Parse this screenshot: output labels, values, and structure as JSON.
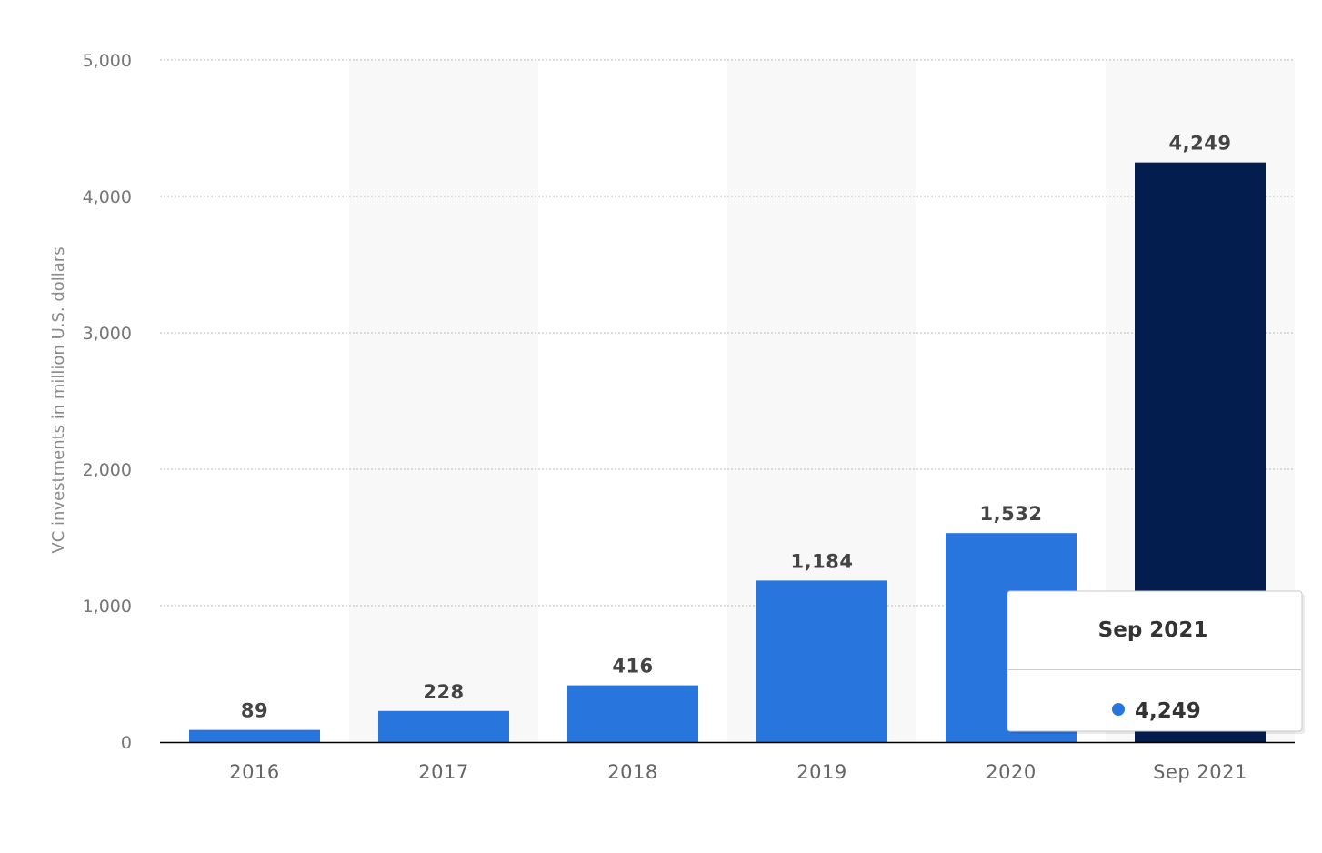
{
  "chart_data": {
    "type": "bar",
    "categories": [
      "2016",
      "2017",
      "2018",
      "2019",
      "2020",
      "Sep 2021"
    ],
    "values": [
      89,
      228,
      416,
      1184,
      1532,
      4249
    ],
    "data_labels": [
      "89",
      "228",
      "416",
      "1,184",
      "1,532",
      "4,249"
    ],
    "title": "",
    "xlabel": "",
    "ylabel": "VC investments in million U.S. dollars",
    "ylim": [
      0,
      5000
    ],
    "yticks": [
      0,
      1000,
      2000,
      3000,
      4000,
      5000
    ],
    "ytick_labels": [
      "0",
      "1,000",
      "2,000",
      "3,000",
      "4,000",
      "5,000"
    ],
    "grid": true,
    "legend": "none",
    "colors": {
      "bar": "#2876dd",
      "highlight": "#031d4f",
      "band": "#f8f8f8",
      "grid": "#bbbbbb",
      "axis": "#000000"
    },
    "highlighted_index": 5,
    "tooltip": {
      "title": "Sep 2021",
      "value": "4,249",
      "marker_color": "#2876dd"
    }
  }
}
